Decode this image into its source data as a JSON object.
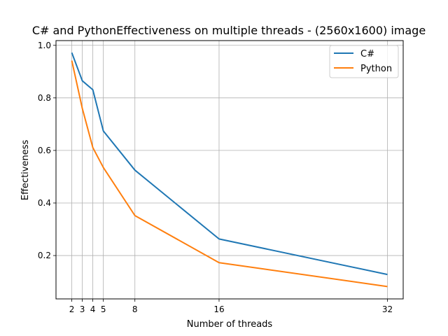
{
  "chart_data": {
    "type": "line",
    "title": "C# and PythonEffectiveness on multiple threads - (2560x1600) image",
    "xlabel": "Number of threads",
    "ylabel": "Effectiveness",
    "x": [
      2,
      3,
      4,
      5,
      8,
      16,
      32
    ],
    "x_ticks": [
      2,
      3,
      4,
      5,
      8,
      16,
      32
    ],
    "y_ticks": [
      0.2,
      0.4,
      0.6,
      0.8,
      1.0
    ],
    "xlim": [
      0.5,
      33.5
    ],
    "ylim": [
      0.035,
      1.018
    ],
    "grid": true,
    "legend": "top-right",
    "series": [
      {
        "name": "C#",
        "color": "#1f77b4",
        "values": [
          0.972,
          0.865,
          0.831,
          0.674,
          0.525,
          0.263,
          0.128
        ]
      },
      {
        "name": "Python",
        "color": "#ff7f0e",
        "values": [
          0.942,
          0.76,
          0.611,
          0.535,
          0.352,
          0.173,
          0.082
        ]
      }
    ]
  }
}
